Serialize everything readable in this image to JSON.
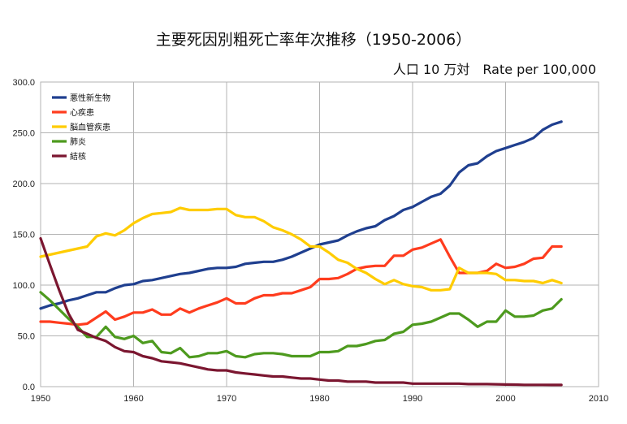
{
  "chart_data": {
    "type": "line",
    "title": "主要死因別粗死亡率年次推移（1950-2006）",
    "subtitle": "人口 10 万対　Rate per 100,000",
    "xlim": [
      1950,
      2010
    ],
    "ylim": [
      0,
      300
    ],
    "x_ticks": [
      "1950",
      "1960",
      "1970",
      "1980",
      "1990",
      "2000",
      "2010"
    ],
    "y_ticks": [
      "0.0",
      "50.0",
      "100.0",
      "150.0",
      "200.0",
      "250.0",
      "300.0"
    ],
    "grid": true,
    "legend_position": "top-left",
    "x": [
      1950,
      1951,
      1952,
      1953,
      1954,
      1955,
      1956,
      1957,
      1958,
      1959,
      1960,
      1961,
      1962,
      1963,
      1964,
      1965,
      1966,
      1967,
      1968,
      1969,
      1970,
      1971,
      1972,
      1973,
      1974,
      1975,
      1976,
      1977,
      1978,
      1979,
      1980,
      1981,
      1982,
      1983,
      1984,
      1985,
      1986,
      1987,
      1988,
      1989,
      1990,
      1991,
      1992,
      1993,
      1994,
      1995,
      1996,
      1997,
      1998,
      1999,
      2000,
      2001,
      2002,
      2003,
      2004,
      2005,
      2006
    ],
    "series": [
      {
        "name": "悪性新生物",
        "color": "#1f3f8f",
        "values": [
          77,
          80,
          82,
          85,
          87,
          90,
          93,
          93,
          97,
          100,
          101,
          104,
          105,
          107,
          109,
          111,
          112,
          114,
          116,
          117,
          117,
          118,
          121,
          122,
          123,
          123,
          125,
          128,
          132,
          136,
          140,
          142,
          144,
          149,
          153,
          156,
          158,
          164,
          168,
          174,
          177,
          182,
          187,
          190,
          198,
          211,
          218,
          220,
          227,
          232,
          235,
          238,
          241,
          245,
          253,
          258,
          261
        ]
      },
      {
        "name": "心疾患",
        "color": "#ff3c1e",
        "values": [
          64,
          64,
          63,
          62,
          61,
          62,
          68,
          74,
          66,
          69,
          73,
          73,
          76,
          71,
          71,
          77,
          73,
          77,
          80,
          83,
          87,
          82,
          82,
          87,
          90,
          90,
          92,
          92,
          95,
          98,
          106,
          106,
          107,
          111,
          116,
          118,
          119,
          119,
          129,
          129,
          135,
          137,
          141,
          145,
          128,
          112,
          112,
          112,
          114,
          121,
          117,
          118,
          121,
          126,
          127,
          138,
          138
        ]
      },
      {
        "name": "脳血管疾患",
        "color": "#ffcc00",
        "values": [
          128,
          130,
          132,
          134,
          136,
          138,
          148,
          151,
          149,
          154,
          161,
          166,
          170,
          171,
          172,
          176,
          174,
          174,
          174,
          175,
          175,
          169,
          167,
          167,
          163,
          157,
          154,
          150,
          145,
          138,
          138,
          132,
          125,
          122,
          116,
          112,
          106,
          101,
          105,
          101,
          99,
          98,
          95,
          95,
          96,
          117,
          112,
          112,
          112,
          111,
          105,
          105,
          104,
          104,
          102,
          105,
          102
        ]
      },
      {
        "name": "肺炎",
        "color": "#4d9a1e",
        "values": [
          93,
          85,
          76,
          67,
          59,
          49,
          49,
          59,
          49,
          47,
          50,
          43,
          45,
          34,
          33,
          38,
          29,
          30,
          33,
          33,
          35,
          30,
          29,
          32,
          33,
          33,
          32,
          30,
          30,
          30,
          34,
          34,
          35,
          40,
          40,
          42,
          45,
          46,
          52,
          54,
          61,
          62,
          64,
          68,
          72,
          72,
          66,
          59,
          64,
          64,
          75,
          69,
          69,
          70,
          75,
          77,
          86
        ]
      },
      {
        "name": "結核",
        "color": "#7b1630",
        "values": [
          146,
          120,
          95,
          72,
          56,
          52,
          48,
          45,
          39,
          35,
          34,
          30,
          28,
          25,
          24,
          23,
          21,
          19,
          17,
          16,
          16,
          14,
          13,
          12,
          11,
          10,
          10,
          9,
          8,
          8,
          7,
          6,
          6,
          5,
          5,
          5,
          4,
          4,
          4,
          4,
          3,
          3,
          3,
          3,
          3,
          3,
          2.5,
          2.5,
          2.5,
          2.3,
          2.1,
          2.0,
          1.8,
          1.8,
          1.8,
          1.7,
          1.7
        ]
      }
    ]
  }
}
